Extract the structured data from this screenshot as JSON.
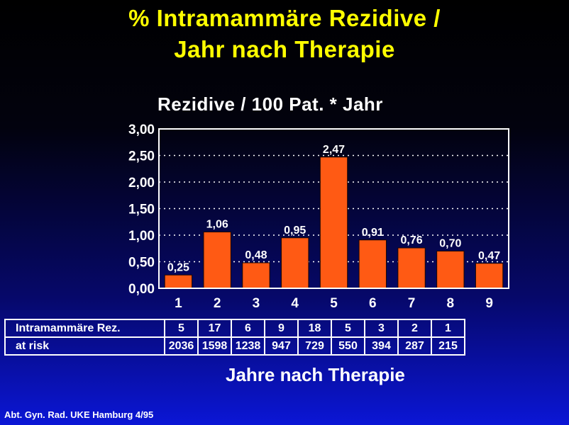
{
  "title_line1": "% Intramammäre Rezidive /",
  "title_line2": "Jahr nach Therapie",
  "colors": {
    "title": "#ffff00",
    "bar": "#ff5a14",
    "text": "#ffffff",
    "grid": "#ffffff"
  },
  "chart_data": {
    "type": "bar",
    "title": "Rezidive / 100 Pat. * Jahr",
    "xlabel": "Jahre nach Therapie",
    "ylabel": "",
    "categories": [
      "1",
      "2",
      "3",
      "4",
      "5",
      "6",
      "7",
      "8",
      "9"
    ],
    "values": [
      0.25,
      1.06,
      0.48,
      0.95,
      2.47,
      0.91,
      0.76,
      0.7,
      0.47
    ],
    "value_labels": [
      "0,25",
      "1,06",
      "0,48",
      "0,95",
      "2,47",
      "0,91",
      "0,76",
      "0,70",
      "0,47"
    ],
    "ylim": [
      0,
      3
    ],
    "yticks": [
      0,
      0.5,
      1.0,
      1.5,
      2.0,
      2.5,
      3.0
    ],
    "ytick_labels": [
      "0,00",
      "0,50",
      "1,00",
      "1,50",
      "2,00",
      "2,50",
      "3,00"
    ],
    "grid": "horizontal dotted",
    "table": [
      {
        "label": "Intramammäre Rez.",
        "values": [
          "5",
          "17",
          "6",
          "9",
          "18",
          "5",
          "3",
          "2",
          "1"
        ]
      },
      {
        "label": "at risk",
        "values": [
          "2036",
          "1598",
          "1238",
          "947",
          "729",
          "550",
          "394",
          "287",
          "215"
        ]
      }
    ]
  },
  "footer": "Abt. Gyn. Rad. UKE Hamburg 4/95"
}
